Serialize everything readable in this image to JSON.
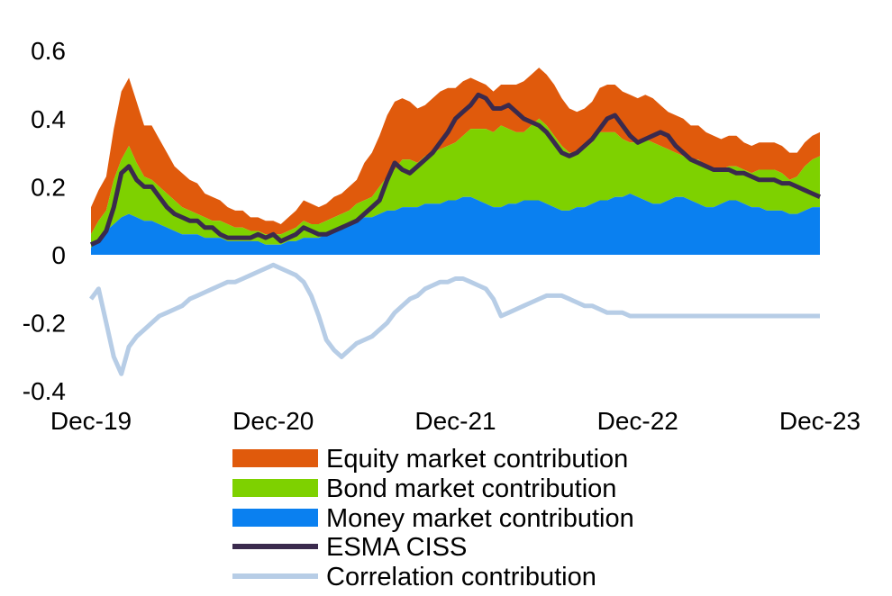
{
  "chart_data": {
    "type": "area",
    "title": "",
    "xlabel": "",
    "ylabel": "",
    "ylim": [
      -0.4,
      0.65
    ],
    "yticks": [
      0.6,
      0.4,
      0.2,
      0,
      -0.2,
      -0.4
    ],
    "ytick_labels": [
      "0.6",
      "0.4",
      "0.2",
      "0",
      "-0.2",
      "-0.4"
    ],
    "xticks": [
      "Dec-19",
      "Dec-20",
      "Dec-21",
      "Dec-22",
      "Dec-23"
    ],
    "xlim_months": [
      0,
      48
    ],
    "grid": false,
    "legend_position": "bottom",
    "colors": {
      "equity": "#E05A0C",
      "bond": "#7ED100",
      "money": "#0A80F0",
      "ciss": "#3A2A4D",
      "correlation": "#B7CDE6"
    },
    "x": [
      0,
      0.5,
      1,
      1.5,
      2,
      2.5,
      3,
      3.5,
      4,
      4.5,
      5,
      5.5,
      6,
      6.5,
      7,
      7.5,
      8,
      8.5,
      9,
      9.5,
      10,
      10.5,
      11,
      11.5,
      12,
      12.5,
      13,
      13.5,
      14,
      14.5,
      15,
      15.5,
      16,
      16.5,
      17,
      17.5,
      18,
      18.5,
      19,
      19.5,
      20,
      20.5,
      21,
      21.5,
      22,
      22.5,
      23,
      23.5,
      24,
      24.5,
      25,
      25.5,
      26,
      26.5,
      27,
      27.5,
      28,
      28.5,
      29,
      29.5,
      30,
      30.5,
      31,
      31.5,
      32,
      32.5,
      33,
      33.5,
      34,
      34.5,
      35,
      35.5,
      36,
      36.5,
      37,
      37.5,
      38,
      38.5,
      39,
      39.5,
      40,
      40.5,
      41,
      41.5,
      42,
      42.5,
      43,
      43.5,
      44,
      44.5,
      45,
      45.5,
      46,
      46.5,
      47,
      47.5,
      48
    ],
    "series": [
      {
        "name": "Money market contribution",
        "kind": "stacked-area",
        "values": [
          0.02,
          0.05,
          0.07,
          0.09,
          0.11,
          0.12,
          0.11,
          0.1,
          0.1,
          0.09,
          0.08,
          0.07,
          0.06,
          0.06,
          0.06,
          0.05,
          0.05,
          0.05,
          0.04,
          0.04,
          0.04,
          0.04,
          0.04,
          0.03,
          0.03,
          0.03,
          0.04,
          0.04,
          0.05,
          0.05,
          0.05,
          0.06,
          0.07,
          0.08,
          0.09,
          0.1,
          0.11,
          0.11,
          0.12,
          0.13,
          0.13,
          0.14,
          0.14,
          0.14,
          0.15,
          0.15,
          0.15,
          0.16,
          0.16,
          0.17,
          0.17,
          0.16,
          0.15,
          0.14,
          0.14,
          0.15,
          0.15,
          0.16,
          0.16,
          0.16,
          0.15,
          0.14,
          0.13,
          0.13,
          0.14,
          0.14,
          0.15,
          0.16,
          0.16,
          0.17,
          0.17,
          0.18,
          0.17,
          0.16,
          0.15,
          0.15,
          0.16,
          0.17,
          0.17,
          0.16,
          0.15,
          0.14,
          0.14,
          0.15,
          0.16,
          0.16,
          0.15,
          0.14,
          0.14,
          0.13,
          0.13,
          0.13,
          0.12,
          0.12,
          0.13,
          0.14,
          0.14
        ]
      },
      {
        "name": "Bond market contribution",
        "kind": "stacked-area",
        "values": [
          0.04,
          0.05,
          0.06,
          0.13,
          0.17,
          0.2,
          0.16,
          0.13,
          0.12,
          0.11,
          0.1,
          0.09,
          0.08,
          0.07,
          0.06,
          0.06,
          0.05,
          0.05,
          0.05,
          0.04,
          0.04,
          0.03,
          0.03,
          0.03,
          0.03,
          0.03,
          0.03,
          0.04,
          0.05,
          0.04,
          0.04,
          0.04,
          0.04,
          0.04,
          0.04,
          0.05,
          0.05,
          0.06,
          0.08,
          0.1,
          0.12,
          0.14,
          0.14,
          0.13,
          0.14,
          0.15,
          0.16,
          0.16,
          0.17,
          0.18,
          0.2,
          0.21,
          0.22,
          0.22,
          0.24,
          0.22,
          0.21,
          0.2,
          0.22,
          0.24,
          0.23,
          0.21,
          0.19,
          0.17,
          0.16,
          0.17,
          0.18,
          0.2,
          0.2,
          0.19,
          0.17,
          0.15,
          0.16,
          0.18,
          0.18,
          0.17,
          0.15,
          0.13,
          0.12,
          0.12,
          0.13,
          0.12,
          0.11,
          0.1,
          0.1,
          0.1,
          0.1,
          0.1,
          0.11,
          0.12,
          0.12,
          0.11,
          0.1,
          0.11,
          0.13,
          0.14,
          0.15
        ]
      },
      {
        "name": "Equity market contribution",
        "kind": "stacked-area",
        "values": [
          0.08,
          0.09,
          0.1,
          0.15,
          0.2,
          0.2,
          0.18,
          0.15,
          0.16,
          0.14,
          0.12,
          0.1,
          0.1,
          0.09,
          0.09,
          0.07,
          0.07,
          0.06,
          0.05,
          0.05,
          0.05,
          0.04,
          0.04,
          0.04,
          0.04,
          0.03,
          0.04,
          0.05,
          0.06,
          0.06,
          0.05,
          0.05,
          0.06,
          0.06,
          0.07,
          0.07,
          0.11,
          0.13,
          0.15,
          0.18,
          0.2,
          0.18,
          0.17,
          0.16,
          0.15,
          0.16,
          0.17,
          0.17,
          0.16,
          0.16,
          0.15,
          0.14,
          0.13,
          0.12,
          0.12,
          0.13,
          0.14,
          0.15,
          0.15,
          0.15,
          0.15,
          0.15,
          0.14,
          0.13,
          0.12,
          0.12,
          0.12,
          0.13,
          0.14,
          0.14,
          0.14,
          0.14,
          0.13,
          0.13,
          0.13,
          0.12,
          0.11,
          0.11,
          0.11,
          0.1,
          0.1,
          0.1,
          0.1,
          0.09,
          0.09,
          0.09,
          0.08,
          0.08,
          0.08,
          0.08,
          0.08,
          0.08,
          0.08,
          0.07,
          0.07,
          0.07,
          0.07
        ]
      },
      {
        "name": "ESMA CISS",
        "kind": "line",
        "values": [
          0.03,
          0.04,
          0.07,
          0.14,
          0.24,
          0.26,
          0.22,
          0.2,
          0.2,
          0.17,
          0.14,
          0.12,
          0.11,
          0.1,
          0.1,
          0.08,
          0.08,
          0.06,
          0.05,
          0.05,
          0.05,
          0.05,
          0.06,
          0.05,
          0.06,
          0.04,
          0.05,
          0.06,
          0.08,
          0.07,
          0.06,
          0.06,
          0.07,
          0.08,
          0.09,
          0.1,
          0.12,
          0.14,
          0.16,
          0.22,
          0.27,
          0.25,
          0.24,
          0.26,
          0.28,
          0.3,
          0.33,
          0.36,
          0.4,
          0.42,
          0.44,
          0.47,
          0.46,
          0.43,
          0.43,
          0.44,
          0.42,
          0.4,
          0.39,
          0.38,
          0.36,
          0.33,
          0.3,
          0.29,
          0.3,
          0.32,
          0.34,
          0.37,
          0.4,
          0.41,
          0.38,
          0.35,
          0.33,
          0.34,
          0.35,
          0.36,
          0.35,
          0.32,
          0.3,
          0.28,
          0.27,
          0.26,
          0.25,
          0.25,
          0.25,
          0.24,
          0.24,
          0.23,
          0.22,
          0.22,
          0.22,
          0.21,
          0.21,
          0.2,
          0.19,
          0.18,
          0.17
        ]
      },
      {
        "name": "Correlation contribution",
        "kind": "line",
        "values": [
          -0.13,
          -0.1,
          -0.2,
          -0.3,
          -0.35,
          -0.27,
          -0.24,
          -0.22,
          -0.2,
          -0.18,
          -0.17,
          -0.16,
          -0.15,
          -0.13,
          -0.12,
          -0.11,
          -0.1,
          -0.09,
          -0.08,
          -0.08,
          -0.07,
          -0.06,
          -0.05,
          -0.04,
          -0.03,
          -0.04,
          -0.05,
          -0.06,
          -0.08,
          -0.12,
          -0.18,
          -0.25,
          -0.28,
          -0.3,
          -0.28,
          -0.26,
          -0.25,
          -0.24,
          -0.22,
          -0.2,
          -0.17,
          -0.15,
          -0.13,
          -0.12,
          -0.1,
          -0.09,
          -0.08,
          -0.08,
          -0.07,
          -0.07,
          -0.08,
          -0.09,
          -0.1,
          -0.13,
          -0.18,
          -0.17,
          -0.16,
          -0.15,
          -0.14,
          -0.13,
          -0.12,
          -0.12,
          -0.12,
          -0.13,
          -0.14,
          -0.15,
          -0.15,
          -0.16,
          -0.17,
          -0.17,
          -0.17,
          -0.18,
          -0.18,
          -0.18,
          -0.18,
          -0.18,
          -0.18,
          -0.18,
          -0.18,
          -0.18,
          -0.18,
          -0.18,
          -0.18,
          -0.18,
          -0.18,
          -0.18,
          -0.18,
          -0.18,
          -0.18,
          -0.18,
          -0.18,
          -0.18,
          -0.18,
          -0.18,
          -0.18,
          -0.18,
          -0.18
        ]
      }
    ]
  },
  "legend": {
    "equity": "Equity market contribution",
    "bond": "Bond market contribution",
    "money": "Money market contribution",
    "ciss": "ESMA CISS",
    "correlation": "Correlation contribution"
  }
}
